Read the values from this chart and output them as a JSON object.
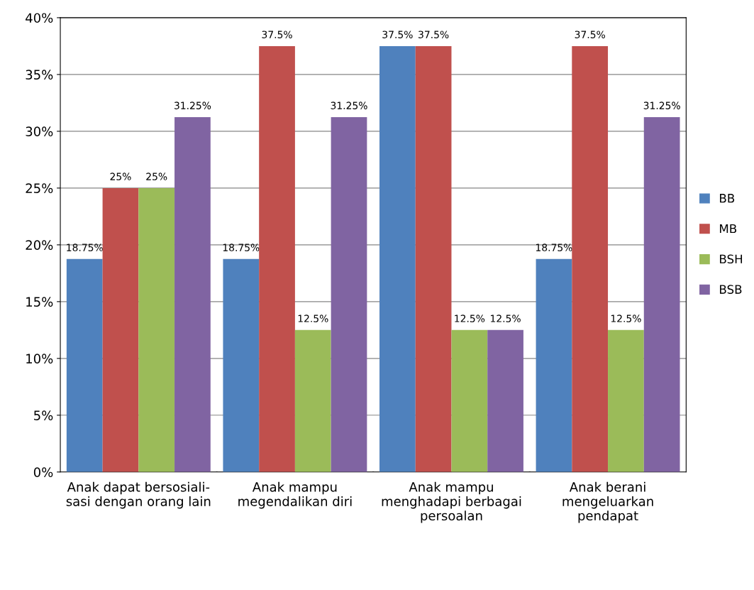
{
  "chart_data": {
    "type": "bar",
    "categories": [
      "Anak dapat bersosiali-\nsasi dengan orang lain",
      "Anak mampu\nmegendalikan diri",
      "Anak mampu\nmenghadapi berbagai\npersoalan",
      "Anak berani\nmengeluarkan\npendapat"
    ],
    "series": [
      {
        "name": "BB",
        "color": "#4f81bd",
        "values": [
          18.75,
          18.75,
          37.5,
          18.75
        ],
        "value_labels": [
          "18.75%",
          "18.75%",
          "37.5%",
          "18.75%"
        ]
      },
      {
        "name": "MB",
        "color": "#c0504d",
        "values": [
          25,
          37.5,
          37.5,
          37.5
        ],
        "value_labels": [
          "25%",
          "37.5%",
          "37.5%",
          "37.5%"
        ]
      },
      {
        "name": "BSH",
        "color": "#9bbb59",
        "values": [
          25,
          12.5,
          12.5,
          12.5
        ],
        "value_labels": [
          "25%",
          "12.5%",
          "12.5%",
          "12.5%"
        ]
      },
      {
        "name": "BSB",
        "color": "#8064a2",
        "values": [
          31.25,
          31.25,
          12.5,
          31.25
        ],
        "value_labels": [
          "31.25%",
          "31.25%",
          "12.5%",
          "31.25%"
        ]
      }
    ],
    "ylim": [
      0,
      40
    ],
    "yticks": [
      {
        "value": 0,
        "label": "0%"
      },
      {
        "value": 5,
        "label": "5%"
      },
      {
        "value": 10,
        "label": "10%"
      },
      {
        "value": 15,
        "label": "15%"
      },
      {
        "value": 20,
        "label": "20%"
      },
      {
        "value": 25,
        "label": "25%"
      },
      {
        "value": 30,
        "label": "30%"
      },
      {
        "value": 35,
        "label": "35%"
      },
      {
        "value": 40,
        "label": "40%"
      }
    ],
    "grid": "y",
    "legend": "right"
  }
}
